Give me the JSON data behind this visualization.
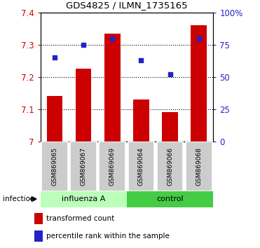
{
  "title": "GDS4825 / ILMN_1735165",
  "samples": [
    "GSM869065",
    "GSM869067",
    "GSM869069",
    "GSM869064",
    "GSM869066",
    "GSM869068"
  ],
  "bar_values": [
    7.14,
    7.225,
    7.335,
    7.13,
    7.09,
    7.36
  ],
  "dot_values": [
    65,
    75,
    80,
    63,
    52,
    80
  ],
  "bar_color": "#cc0000",
  "dot_color": "#2222cc",
  "ymin": 7.0,
  "ymax": 7.4,
  "yticks": [
    7.0,
    7.1,
    7.2,
    7.3,
    7.4
  ],
  "ytick_labels": [
    "7",
    "7.1",
    "7.2",
    "7.3",
    "7.4"
  ],
  "y2min": 0,
  "y2max": 100,
  "y2ticks": [
    0,
    25,
    50,
    75,
    100
  ],
  "y2tick_labels": [
    "0",
    "25",
    "50",
    "75",
    "100%"
  ],
  "left_tick_color": "#cc0000",
  "right_tick_color": "#2222cc",
  "group1_label": "influenza A",
  "group2_label": "control",
  "group1_color": "#bbffbb",
  "group2_color": "#44cc44",
  "group1_indices": [
    0,
    1,
    2
  ],
  "group2_indices": [
    3,
    4,
    5
  ],
  "legend_bar_label": "transformed count",
  "legend_dot_label": "percentile rank within the sample",
  "infection_label": "infection"
}
